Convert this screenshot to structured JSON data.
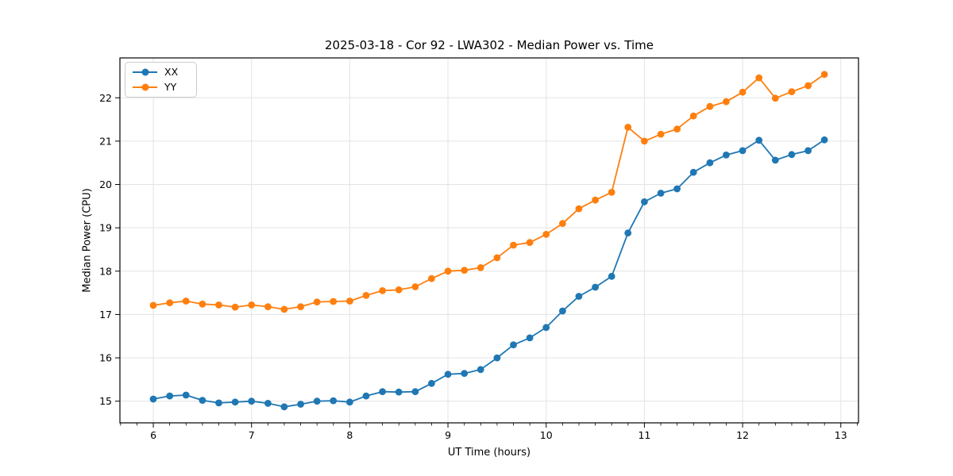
{
  "window": {
    "background": "#ffffff"
  },
  "colors": {
    "series_blue": "#1f77b4",
    "series_orange": "#ff7f0e",
    "grid": "#e3e3e3",
    "spine": "#000000",
    "legend_border": "#cccccc"
  },
  "legend": {
    "items": [
      "XX",
      "YY"
    ]
  },
  "chart_data": {
    "type": "line",
    "title": "2025-03-18 - Cor 92 - LWA302 - Median Power vs. Time",
    "xlabel": "UT Time (hours)",
    "ylabel": "Median Power (CPU)",
    "xlim": [
      5.66,
      13.18
    ],
    "ylim": [
      14.5,
      22.92
    ],
    "xticks": [
      6,
      7,
      8,
      9,
      10,
      11,
      12,
      13
    ],
    "yticks": [
      15,
      16,
      17,
      18,
      19,
      20,
      21,
      22
    ],
    "minor_xtick_step": 0.16667,
    "grid": true,
    "legend_position": "upper-left",
    "marker": "circle",
    "x": [
      6.0,
      6.167,
      6.333,
      6.5,
      6.667,
      6.833,
      7.0,
      7.167,
      7.333,
      7.5,
      7.667,
      7.833,
      8.0,
      8.167,
      8.333,
      8.5,
      8.667,
      8.833,
      9.0,
      9.167,
      9.333,
      9.5,
      9.667,
      9.833,
      10.0,
      10.167,
      10.333,
      10.5,
      10.667,
      10.833,
      11.0,
      11.167,
      11.333,
      11.5,
      11.667,
      11.833,
      12.0,
      12.167,
      12.333,
      12.5,
      12.667,
      12.833
    ],
    "series": [
      {
        "name": "XX",
        "color": "#1f77b4",
        "values": [
          15.05,
          15.12,
          15.14,
          15.02,
          14.96,
          14.98,
          15.0,
          14.95,
          14.87,
          14.93,
          15.0,
          15.01,
          14.98,
          15.12,
          15.22,
          15.21,
          15.22,
          15.41,
          15.62,
          15.64,
          15.73,
          16.0,
          16.3,
          16.46,
          16.7,
          17.08,
          17.42,
          17.63,
          17.88,
          18.88,
          19.6,
          19.8,
          19.9,
          20.28,
          20.5,
          20.68,
          20.78,
          21.02,
          20.56,
          20.69,
          20.78,
          21.03
        ]
      },
      {
        "name": "YY",
        "color": "#ff7f0e",
        "values": [
          17.21,
          17.27,
          17.31,
          17.24,
          17.22,
          17.17,
          17.22,
          17.18,
          17.12,
          17.18,
          17.29,
          17.3,
          17.31,
          17.44,
          17.55,
          17.57,
          17.64,
          17.83,
          18.0,
          18.02,
          18.08,
          18.31,
          18.6,
          18.66,
          18.85,
          19.1,
          19.44,
          19.64,
          19.82,
          21.32,
          21.0,
          21.16,
          21.28,
          21.58,
          21.8,
          21.91,
          22.13,
          22.46,
          21.99,
          22.14,
          22.28,
          22.54
        ]
      }
    ]
  }
}
